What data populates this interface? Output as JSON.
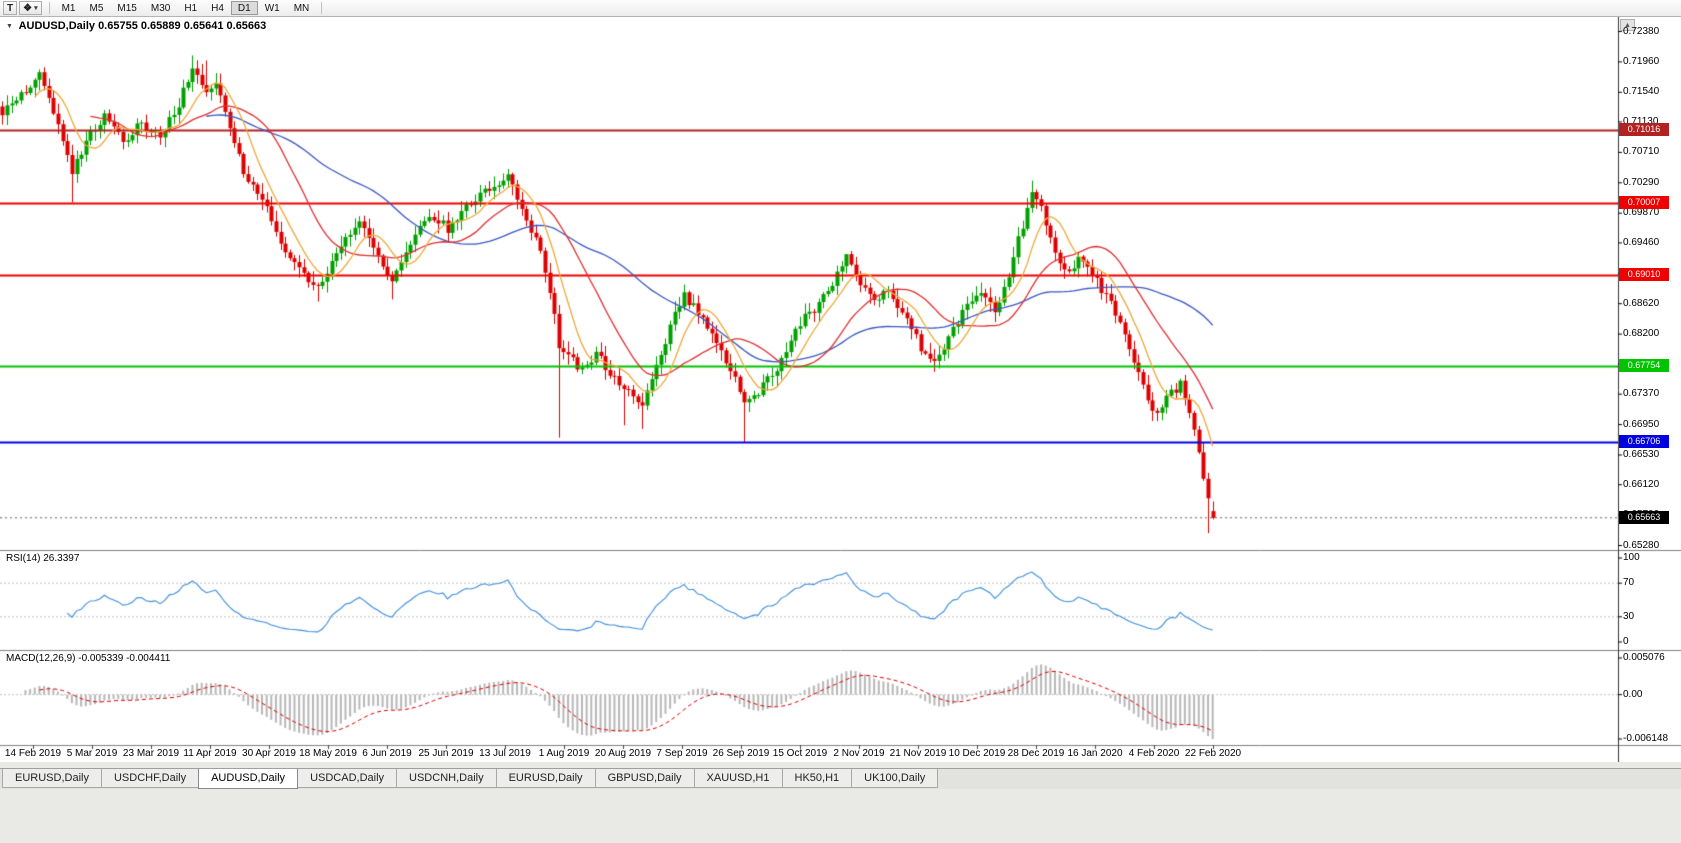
{
  "icons": {
    "window_button": "T",
    "tools_glyph": "❖",
    "caret": "▾",
    "scroll_up": "▲",
    "title_marker": "▼"
  },
  "toolbar": {
    "window_button_label": "T",
    "timeframes": [
      "M1",
      "M5",
      "M15",
      "M30",
      "H1",
      "H4",
      "D1",
      "W1",
      "MN"
    ],
    "active_timeframe": "D1"
  },
  "chart": {
    "title_symbol": "AUDUSD,Daily",
    "title_ohlc": "0.65755 0.65889 0.65641 0.65663"
  },
  "price_axis": {
    "labels": [
      "0.72380",
      "0.71960",
      "0.71540",
      "0.71130",
      "0.70710",
      "0.70290",
      "0.69870",
      "0.69460",
      "0.69040",
      "0.68620",
      "0.68200",
      "0.67790",
      "0.67370",
      "0.66950",
      "0.66530",
      "0.66120",
      "0.65700",
      "0.65280"
    ]
  },
  "levels": [
    {
      "price": 0.71016,
      "label": "0.71016",
      "color": "#B22222"
    },
    {
      "price": 0.70007,
      "label": "0.70007",
      "color": "#F00000"
    },
    {
      "price": 0.6901,
      "label": "0.69010",
      "color": "#F00000"
    },
    {
      "price": 0.67754,
      "label": "0.67754",
      "color": "#00C400"
    },
    {
      "price": 0.66706,
      "label": "0.66706",
      "color": "#0000E0"
    }
  ],
  "current_price": {
    "value": 0.65663,
    "label": "0.65663",
    "color": "#000000"
  },
  "rsi": {
    "name": "RSI(14)",
    "value_text": "26.3397",
    "value": 26.3397,
    "line_color": "#3E8EDE",
    "guide_levels": [
      70,
      30
    ],
    "axis_labels": [
      {
        "v": 100,
        "label": "100"
      },
      {
        "v": 70,
        "label": "70"
      },
      {
        "v": 30,
        "label": "30"
      },
      {
        "v": 0,
        "label": "0"
      }
    ]
  },
  "macd": {
    "name": "MACD(12,26,9)",
    "values_text": "-0.005339 -0.004411",
    "macd_value": -0.005339,
    "signal_value": -0.004411,
    "histogram_color": "#B8B8B8",
    "signal_color": "#E00000",
    "range": {
      "max": 0.005076,
      "min": -0.006148
    },
    "axis_labels": [
      {
        "v": 0.005076,
        "label": "0.005076"
      },
      {
        "v": 0,
        "label": "0.00"
      },
      {
        "v": -0.006148,
        "label": "-0.006148"
      }
    ]
  },
  "date_axis": {
    "labels": [
      "14 Feb 2019",
      "5 Mar 2019",
      "23 Mar 2019",
      "11 Apr 2019",
      "30 Apr 2019",
      "18 May 2019",
      "6 Jun 2019",
      "25 Jun 2019",
      "13 Jul 2019",
      "1 Aug 2019",
      "20 Aug 2019",
      "7 Sep 2019",
      "26 Sep 2019",
      "15 Oct 2019",
      "2 Nov 2019",
      "21 Nov 2019",
      "10 Dec 2019",
      "28 Dec 2019",
      "16 Jan 2020",
      "4 Feb 2020",
      "22 Feb 2020"
    ]
  },
  "tabs": {
    "items": [
      "EURUSD,Daily",
      "USDCHF,Daily",
      "AUDUSD,Daily",
      "USDCAD,Daily",
      "USDCNH,Daily",
      "EURUSD,Daily",
      "GBPUSD,Daily",
      "XAUUSD,H1",
      "HK50,H1",
      "UK100,Daily"
    ],
    "active_index": 2
  },
  "colors": {
    "candle_up": "#00A000",
    "candle_down": "#DE0000",
    "panel_border": "#808080",
    "scale_separator": "#333333",
    "guide_dotted": "#C4C4C4",
    "bid_line": "#666666"
  },
  "chart_data": {
    "type": "candlestick",
    "symbol": "AUDUSD",
    "timeframe": "Daily",
    "y_range": [
      0.6528,
      0.7238
    ],
    "bar_count": 262,
    "plot_span": 1215,
    "last_bar": {
      "o": 0.65755,
      "h": 0.65889,
      "l": 0.65641,
      "c": 0.65663
    },
    "close_path_anchors": [
      [
        0,
        0.7125
      ],
      [
        4,
        0.715
      ],
      [
        8,
        0.7178
      ],
      [
        12,
        0.7112
      ],
      [
        15,
        0.7038
      ],
      [
        18,
        0.7092
      ],
      [
        22,
        0.7122
      ],
      [
        26,
        0.7088
      ],
      [
        30,
        0.711
      ],
      [
        34,
        0.7096
      ],
      [
        38,
        0.7138
      ],
      [
        41,
        0.7192
      ],
      [
        44,
        0.715
      ],
      [
        46,
        0.7172
      ],
      [
        48,
        0.7128
      ],
      [
        52,
        0.7042
      ],
      [
        55,
        0.7012
      ],
      [
        58,
        0.6982
      ],
      [
        61,
        0.6932
      ],
      [
        65,
        0.6902
      ],
      [
        68,
        0.6882
      ],
      [
        71,
        0.6922
      ],
      [
        74,
        0.6952
      ],
      [
        77,
        0.6976
      ],
      [
        81,
        0.6932
      ],
      [
        84,
        0.6892
      ],
      [
        86,
        0.6922
      ],
      [
        89,
        0.6962
      ],
      [
        92,
        0.6986
      ],
      [
        96,
        0.6966
      ],
      [
        99,
        0.6992
      ],
      [
        102,
        0.7006
      ],
      [
        105,
        0.7022
      ],
      [
        109,
        0.704
      ],
      [
        111,
        0.7012
      ],
      [
        113,
        0.6982
      ],
      [
        116,
        0.6932
      ],
      [
        118,
        0.6882
      ],
      [
        120,
        0.6802
      ],
      [
        121,
        0.6792
      ],
      [
        125,
        0.6772
      ],
      [
        128,
        0.6792
      ],
      [
        131,
        0.6766
      ],
      [
        134,
        0.6742
      ],
      [
        138,
        0.6722
      ],
      [
        141,
        0.6772
      ],
      [
        144,
        0.6832
      ],
      [
        147,
        0.6872
      ],
      [
        150,
        0.6852
      ],
      [
        154,
        0.6812
      ],
      [
        157,
        0.6772
      ],
      [
        160,
        0.6722
      ],
      [
        163,
        0.6742
      ],
      [
        167,
        0.6772
      ],
      [
        170,
        0.6812
      ],
      [
        173,
        0.6842
      ],
      [
        176,
        0.6862
      ],
      [
        180,
        0.6902
      ],
      [
        182,
        0.6926
      ],
      [
        185,
        0.6892
      ],
      [
        188,
        0.6862
      ],
      [
        191,
        0.6882
      ],
      [
        195,
        0.6842
      ],
      [
        198,
        0.6802
      ],
      [
        201,
        0.6782
      ],
      [
        204,
        0.6812
      ],
      [
        208,
        0.6862
      ],
      [
        211,
        0.6882
      ],
      [
        214,
        0.6852
      ],
      [
        217,
        0.6902
      ],
      [
        220,
        0.6972
      ],
      [
        222,
        0.7022
      ],
      [
        224,
        0.6992
      ],
      [
        227,
        0.6932
      ],
      [
        230,
        0.6902
      ],
      [
        232,
        0.6932
      ],
      [
        235,
        0.6902
      ],
      [
        239,
        0.6862
      ],
      [
        242,
        0.6822
      ],
      [
        245,
        0.6762
      ],
      [
        248,
        0.6712
      ],
      [
        250,
        0.6722
      ],
      [
        254,
        0.6752
      ],
      [
        257,
        0.6692
      ],
      [
        259,
        0.6622
      ],
      [
        261,
        0.65663
      ]
    ],
    "wick_overrides": {
      "15": {
        "low": 0.7002
      },
      "41": {
        "high": 0.7205
      },
      "44": {
        "high": 0.7198
      },
      "68": {
        "low": 0.6865
      },
      "84": {
        "low": 0.6868
      },
      "109": {
        "high": 0.7048
      },
      "120": {
        "low": 0.6677
      },
      "134": {
        "low": 0.6694
      },
      "138": {
        "low": 0.6689
      },
      "160": {
        "low": 0.6671
      },
      "182": {
        "high": 0.693
      },
      "201": {
        "low": 0.6768
      },
      "222": {
        "high": 0.7032
      },
      "248": {
        "low": 0.67
      },
      "260": {
        "low": 0.6545
      }
    },
    "moving_averages": [
      {
        "period": 45,
        "color": "#3B57C4"
      },
      {
        "period": 20,
        "color": "#E03030"
      },
      {
        "period": 8,
        "color": "#EFA93C"
      }
    ],
    "indicators": {
      "rsi": {
        "period": 14,
        "current": 26.3397,
        "levels": [
          70,
          30
        ],
        "range": [
          0,
          100
        ]
      },
      "macd": {
        "fast": 12,
        "slow": 26,
        "signal": 9,
        "current_macd": -0.005339,
        "current_signal": -0.004411,
        "range": [
          -0.006148,
          0.005076
        ]
      }
    }
  }
}
